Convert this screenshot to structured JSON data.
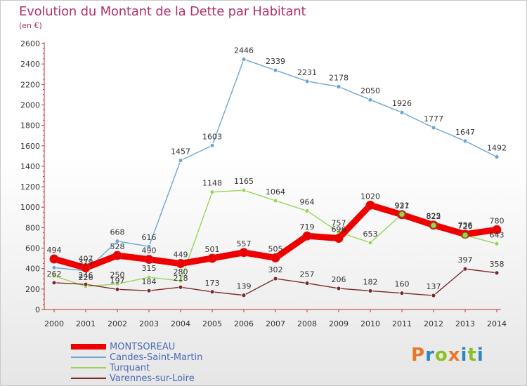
{
  "header": {
    "title": "Evolution du Montant de la Dette par Habitant",
    "unit": "(en €)"
  },
  "logo": {
    "text": "Proxiti",
    "colors": [
      "#e8782a",
      "#2e86c8",
      "#8cbf26",
      "#e8782a",
      "#2e86c8",
      "#8cbf26",
      "#2e86c8"
    ]
  },
  "chart_data": {
    "type": "line",
    "title": "Evolution du Montant de la Dette par Habitant",
    "subtitle": "(en €)",
    "x": [
      "2000",
      "2001",
      "2002",
      "2003",
      "2004",
      "2005",
      "2006",
      "2007",
      "2008",
      "2009",
      "2010",
      "2011",
      "2012",
      "2013",
      "2014"
    ],
    "ylim": [
      0,
      2600
    ],
    "yticks": [
      0,
      200,
      400,
      600,
      800,
      1000,
      1200,
      1400,
      1600,
      1800,
      2000,
      2200,
      2400,
      2600
    ],
    "grid": false,
    "legend_position": "bottom-left",
    "series": [
      {
        "name": "MONTSOREAU",
        "color": "#ee0000",
        "values": [
          494,
          407,
          528,
          490,
          449,
          501,
          557,
          505,
          719,
          696,
          1020,
          927,
          825,
          736,
          780
        ],
        "labels": [
          "494",
          "407",
          "528",
          "490",
          "449",
          "501",
          "557",
          "505",
          "719",
          "696",
          "1020",
          "927",
          "825",
          "736",
          "780"
        ]
      },
      {
        "name": "Candes-Saint-Martin",
        "color": "#6aa6d6",
        "values": [
          409,
          379,
          668,
          616,
          1457,
          1603,
          2446,
          2339,
          2231,
          2178,
          2050,
          1926,
          1777,
          1647,
          1492
        ],
        "labels": [
          "",
          "379",
          "668",
          "616",
          "1457",
          "1603",
          "2446",
          "2339",
          "2231",
          "2178",
          "2050",
          "1926",
          "1777",
          "1647",
          "1492"
        ]
      },
      {
        "name": "Turquant",
        "color": "#9ad456",
        "values": [
          328,
          226,
          250,
          315,
          280,
          1148,
          1165,
          1064,
          964,
          757,
          653,
          931,
          822,
          726,
          643
        ],
        "labels": [
          "",
          "226",
          "250",
          "315",
          "280",
          "1148",
          "1165",
          "1064",
          "964",
          "757",
          "653",
          "931",
          "822",
          "726",
          "643"
        ]
      },
      {
        "name": "Varennes-sur-Loire",
        "color": "#7a2a2a",
        "values": [
          262,
          246,
          197,
          184,
          218,
          173,
          139,
          302,
          257,
          206,
          182,
          160,
          137,
          397,
          358
        ],
        "labels": [
          "262",
          "246",
          "197",
          "184",
          "218",
          "173",
          "139",
          "302",
          "257",
          "206",
          "182",
          "160",
          "137",
          "397",
          "358"
        ]
      }
    ]
  }
}
